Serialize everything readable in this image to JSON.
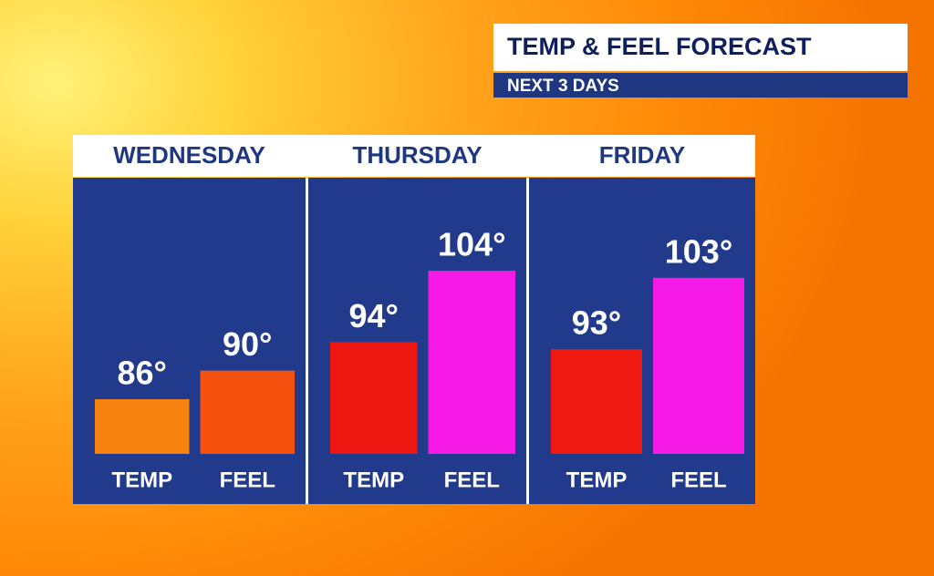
{
  "chart_data": {
    "type": "bar",
    "title": "TEMP & FEEL FORECAST",
    "subtitle": "NEXT 3 DAYS",
    "categories": [
      "WEDNESDAY",
      "THURSDAY",
      "FRIDAY"
    ],
    "series": [
      {
        "name": "TEMP",
        "colors": [
          "#f7820f",
          "#ee1611",
          "#ee1a12"
        ],
        "values": [
          86,
          94,
          93
        ],
        "value_labels": [
          "86°",
          "94°",
          "93°"
        ]
      },
      {
        "name": "FEEL",
        "colors": [
          "#f5520f",
          "#f51ae6",
          "#f51ae6"
        ],
        "values": [
          90,
          104,
          103
        ],
        "value_labels": [
          "90°",
          "104°",
          "103°"
        ]
      }
    ]
  }
}
